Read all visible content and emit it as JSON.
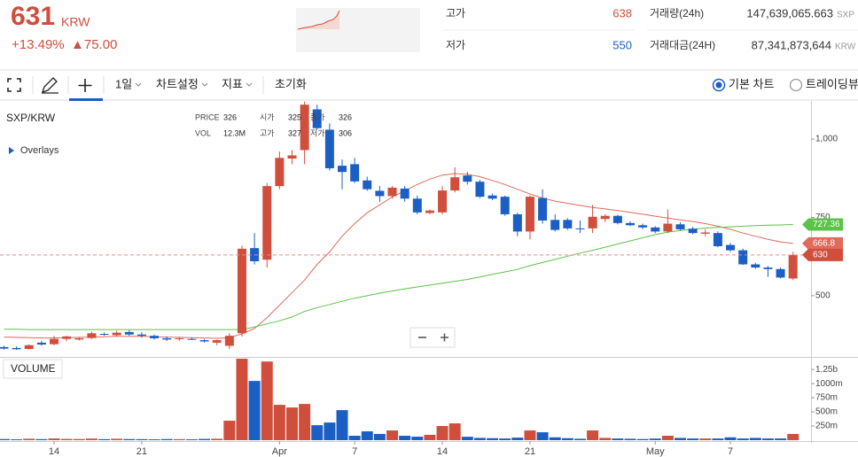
{
  "header": {
    "price": 631,
    "currency": "KRW",
    "change_rate": "+13.49%",
    "change": "▲75.00",
    "high": {
      "label": "고가",
      "value": 638
    },
    "low": {
      "label": "저가",
      "value": 550
    },
    "volume": {
      "label": "거래량(24h)",
      "value": "147,639,065.663",
      "unit": "SXP"
    },
    "amount": {
      "label": "거래대금(24H)",
      "value": "87,341,873,644",
      "unit": "KRW"
    }
  },
  "toolbar": {
    "period": "1일",
    "settings": "차트설정",
    "indicator": "지표",
    "reset": "초기화",
    "basic_chart": "기본 차트",
    "tradingview": "트레이딩뷰"
  },
  "chart_data": {
    "type": "candlestick",
    "title": "SXP/KRW",
    "overlays": "Overlays",
    "volume_title": "VOLUME",
    "info": [
      {
        "label": "PRICE",
        "value": 326
      },
      {
        "label": "VOL",
        "value": "12.3M"
      },
      {
        "label": "시가",
        "value": 325
      },
      {
        "label": "고가",
        "value": 327
      },
      {
        "label": "종가",
        "value": 326
      },
      {
        "label": "저가",
        "value": 306
      }
    ],
    "categories": [
      null,
      null,
      null,
      null,
      "14",
      null,
      null,
      null,
      null,
      null,
      null,
      "21",
      null,
      null,
      null,
      null,
      null,
      null,
      null,
      null,
      null,
      null,
      "Apr",
      null,
      null,
      null,
      null,
      null,
      "7",
      null,
      null,
      null,
      null,
      null,
      null,
      "14",
      null,
      null,
      null,
      null,
      null,
      null,
      "21",
      null,
      null,
      null,
      null,
      null,
      null,
      null,
      null,
      null,
      "May",
      null,
      null,
      null,
      null,
      null,
      "7",
      null,
      null,
      null,
      null,
      null
    ],
    "open": [
      336,
      333,
      330,
      350,
      345,
      362,
      360,
      365,
      378,
      374,
      384,
      376,
      372,
      364,
      362,
      362,
      358,
      350,
      340,
      380,
      652,
      615,
      850,
      938,
      965,
      1095,
      1030,
      915,
      920,
      868,
      835,
      818,
      842,
      810,
      764,
      766,
      836,
      884,
      864,
      820,
      816,
      760,
      705,
      812,
      742,
      742,
      715,
      715,
      745,
      755,
      732,
      725,
      718,
      705,
      728,
      714,
      698,
      700,
      662,
      645,
      600,
      590,
      585,
      555
    ],
    "high": [
      340,
      338,
      345,
      356,
      372,
      372,
      368,
      385,
      382,
      388,
      390,
      384,
      376,
      370,
      368,
      366,
      362,
      360,
      380,
      660,
      700,
      860,
      960,
      965,
      1120,
      1110,
      1050,
      935,
      940,
      880,
      850,
      850,
      850,
      820,
      775,
      850,
      910,
      895,
      870,
      826,
      820,
      765,
      820,
      840,
      760,
      748,
      740,
      790,
      760,
      758,
      738,
      730,
      722,
      775,
      735,
      720,
      712,
      705,
      668,
      650,
      605,
      595,
      590,
      640
    ],
    "low": [
      328,
      327,
      328,
      340,
      342,
      355,
      357,
      362,
      372,
      370,
      372,
      366,
      360,
      356,
      356,
      358,
      350,
      342,
      330,
      370,
      600,
      590,
      840,
      920,
      920,
      1030,
      900,
      840,
      860,
      835,
      800,
      810,
      800,
      760,
      760,
      760,
      830,
      855,
      812,
      805,
      755,
      690,
      680,
      730,
      705,
      710,
      700,
      700,
      735,
      728,
      722,
      712,
      700,
      700,
      708,
      696,
      690,
      655,
      640,
      598,
      586,
      560,
      555,
      550
    ],
    "close": [
      331,
      329,
      342,
      344,
      362,
      370,
      364,
      380,
      376,
      382,
      376,
      372,
      364,
      360,
      364,
      360,
      354,
      358,
      372,
      650,
      610,
      850,
      940,
      948,
      1110,
      1035,
      907,
      895,
      865,
      840,
      818,
      845,
      810,
      766,
      772,
      836,
      878,
      864,
      816,
      810,
      760,
      705,
      816,
      740,
      710,
      715,
      712,
      752,
      755,
      732,
      725,
      718,
      705,
      730,
      712,
      700,
      702,
      658,
      645,
      600,
      590,
      585,
      558,
      630
    ],
    "volume": [
      20000000,
      15000000,
      25000000,
      18000000,
      30000000,
      22000000,
      20000000,
      28000000,
      18000000,
      25000000,
      20000000,
      18000000,
      15000000,
      20000000,
      18000000,
      15000000,
      22000000,
      25000000,
      344000000,
      1440000000,
      1047000000,
      1390000000,
      625000000,
      578000000,
      640000000,
      265000000,
      312000000,
      531000000,
      78000000,
      156000000,
      110000000,
      172000000,
      78000000,
      62000000,
      94000000,
      250000000,
      297000000,
      60000000,
      40000000,
      35000000,
      30000000,
      45000000,
      172000000,
      140000000,
      50000000,
      35000000,
      25000000,
      172000000,
      40000000,
      30000000,
      25000000,
      20000000,
      28000000,
      78000000,
      40000000,
      30000000,
      30000000,
      30000000,
      50000000,
      30000000,
      40000000,
      30000000,
      30000000,
      110000000
    ],
    "up_color": "#d04e3c",
    "down_color": "#1c5fc4",
    "series": [
      {
        "color": "#e06a5c",
        "values": [
          368,
          367,
          366,
          365,
          365,
          366,
          367,
          368,
          369,
          370,
          370,
          370,
          369,
          368,
          367,
          366,
          365,
          364,
          366,
          378,
          395,
          430,
          470,
          510,
          550,
          600,
          640,
          690,
          730,
          765,
          790,
          815,
          835,
          855,
          872,
          885,
          890,
          888,
          880,
          868,
          855,
          840,
          825,
          812,
          802,
          795,
          788,
          782,
          777,
          772,
          766,
          760,
          754,
          748,
          742,
          737,
          730,
          722,
          712,
          700,
          690,
          680,
          672,
          666.8
        ]
      },
      {
        "color": "#5cc24a",
        "values": [
          393,
          393,
          392,
          392,
          392,
          392,
          392,
          392,
          392,
          392,
          392,
          392,
          392,
          392,
          392,
          392,
          392,
          392,
          392,
          392,
          400,
          410,
          420,
          432,
          450,
          462,
          472,
          482,
          492,
          500,
          508,
          515,
          522,
          528,
          534,
          540,
          546,
          552,
          560,
          568,
          576,
          584,
          596,
          606,
          616,
          626,
          636,
          645,
          655,
          665,
          675,
          685,
          695,
          703,
          708,
          712,
          716,
          718,
          720,
          722,
          724,
          725,
          726,
          727.36
        ]
      }
    ],
    "ylim": [
      313,
      1119
    ],
    "yticks": [
      {
        "value": 1000,
        "label": "1,000"
      },
      750,
      500
    ],
    "vlim": [
      0,
      1440000000
    ],
    "vticks": [
      {
        "value": 1250000000,
        "label": "1.25b"
      },
      {
        "value": 1000000000,
        "label": "1000m"
      },
      {
        "value": 750000000,
        "label": "750m"
      },
      {
        "value": 500000000,
        "label": "500m"
      },
      {
        "value": 250000000,
        "label": "250m"
      }
    ]
  }
}
